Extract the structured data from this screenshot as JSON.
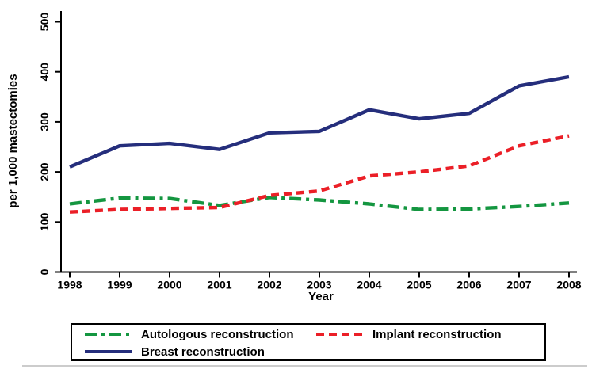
{
  "figure": {
    "y_axis_label": "per 1,000 mastectomies",
    "x_axis_label": "Year",
    "background_color": "#ffffff",
    "axis_color": "#000000"
  },
  "chart_data": {
    "type": "line",
    "x": [
      1998,
      1999,
      2000,
      2001,
      2002,
      2003,
      2004,
      2005,
      2006,
      2007,
      2008
    ],
    "xlabel": "Year",
    "ylabel": "per 1,000 mastectomies",
    "ylim": [
      0,
      500
    ],
    "y_ticks": [
      0,
      100,
      200,
      300,
      400,
      500
    ],
    "grid": false,
    "legend_position": "bottom",
    "series": [
      {
        "name": "Autologous reconstruction",
        "color": "#149640",
        "dash": "dashdot",
        "values": [
          136,
          148,
          147,
          133,
          149,
          144,
          136,
          125,
          126,
          131,
          138
        ]
      },
      {
        "name": "Implant reconstruction",
        "color": "#eb1f27",
        "dash": "dashed",
        "values": [
          120,
          125,
          127,
          129,
          153,
          162,
          192,
          200,
          212,
          252,
          272
        ]
      },
      {
        "name": "Breast reconstruction",
        "color": "#252e7c",
        "dash": "solid",
        "values": [
          210,
          252,
          257,
          245,
          278,
          281,
          324,
          306,
          317,
          372,
          390
        ]
      }
    ]
  }
}
